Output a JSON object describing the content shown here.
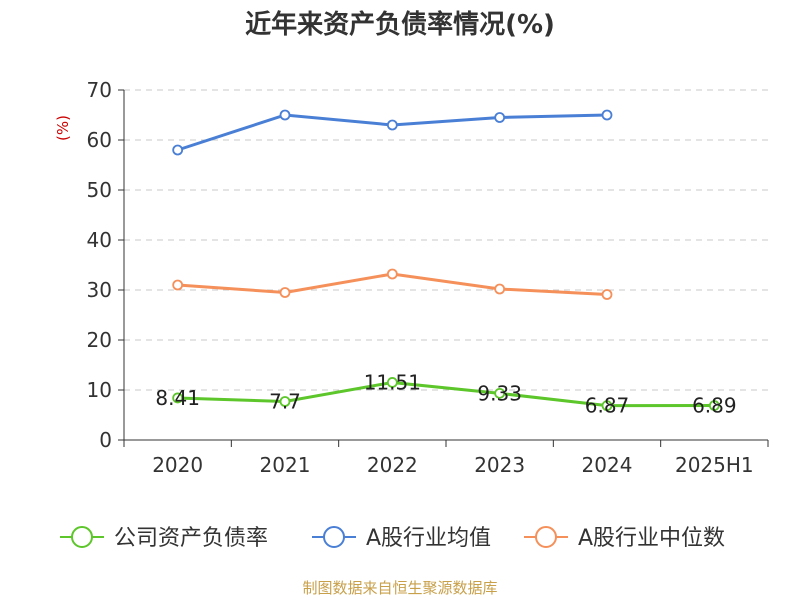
{
  "header": {
    "title": "近年来资产负债率情况(%)"
  },
  "footer": {
    "source": "制图数据来自恒生聚源数据库"
  },
  "chart_data": {
    "type": "line",
    "title": "近年来资产负债率情况(%)",
    "ylabel": "(%)",
    "xlabel": "",
    "categories": [
      "2020",
      "2021",
      "2022",
      "2023",
      "2024",
      "2025H1"
    ],
    "ylim": [
      0,
      70
    ],
    "yticks": [
      0,
      10,
      20,
      30,
      40,
      50,
      60,
      70
    ],
    "grid": true,
    "legend_position": "bottom",
    "series": [
      {
        "name": "公司资产负债率",
        "color": "#5cc62a",
        "values": [
          8.41,
          7.7,
          11.51,
          9.33,
          6.87,
          6.89
        ],
        "labels": [
          "8.41",
          "7.7",
          "11.51",
          "9.33",
          "6.87",
          "6.89"
        ]
      },
      {
        "name": "A股行业均值",
        "color": "#4a7fd6",
        "values": [
          58.0,
          65.0,
          63.0,
          64.5,
          65.0,
          null
        ]
      },
      {
        "name": "A股行业中位数",
        "color": "#f5905a",
        "values": [
          31.0,
          29.5,
          33.2,
          30.2,
          29.1,
          null
        ]
      }
    ]
  }
}
